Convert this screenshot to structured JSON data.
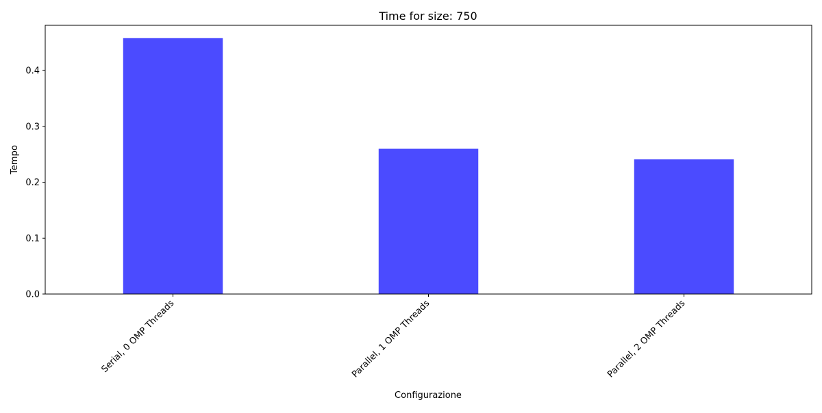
{
  "chart_data": {
    "type": "bar",
    "title": "Time for size: 750",
    "xlabel": "Configurazione",
    "ylabel": "Tempo",
    "categories": [
      "Serial, 0 OMP Threads",
      "Parallel, 1 OMP Threads",
      "Parallel, 2 OMP Threads"
    ],
    "values": [
      0.458,
      0.26,
      0.241
    ],
    "ylim": [
      0,
      0.481
    ],
    "yticks": [
      0.0,
      0.1,
      0.2,
      0.3,
      0.4
    ],
    "ytick_labels": [
      "0.0",
      "0.1",
      "0.2",
      "0.3",
      "0.4"
    ],
    "bar_color": "#4b4bff",
    "grid": false,
    "legend": "none"
  }
}
